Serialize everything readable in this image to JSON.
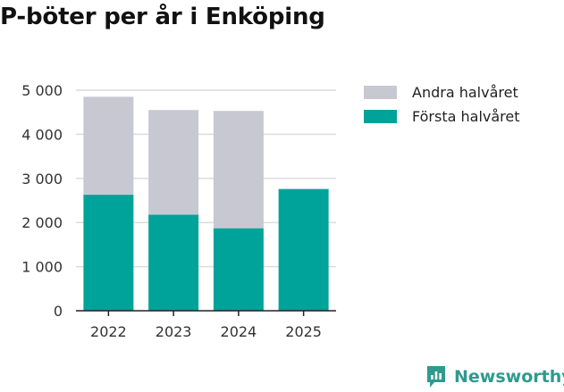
{
  "title": "P-böter per år i Enköping",
  "brand": {
    "name": "Newsworthy",
    "color": "#2f9a8e",
    "icon": "newsworthy-logo-icon"
  },
  "colors": {
    "first_half": "#00a39a",
    "second_half": "#c8c8d2",
    "grid": "#dcdcdc",
    "axis": "#222222"
  },
  "chart_data": {
    "type": "bar",
    "stacked": true,
    "categories": [
      "2022",
      "2023",
      "2024",
      "2025"
    ],
    "series": [
      {
        "name": "Första halvåret",
        "values": [
          2630,
          2180,
          1870,
          2760
        ]
      },
      {
        "name": "Andra halvåret",
        "values": [
          2220,
          2370,
          2660,
          null
        ]
      }
    ],
    "y_ticks": [
      0,
      1000,
      2000,
      3000,
      4000,
      5000
    ],
    "y_tick_labels": [
      "0",
      "1 000",
      "2 000",
      "3 000",
      "4 000",
      "5 000"
    ],
    "ylim": [
      0,
      5000
    ],
    "grid": true,
    "legend_position": "right",
    "xlabel": "",
    "ylabel": ""
  },
  "legend": [
    {
      "label": "Andra halvåret",
      "color": "#c8c8d2"
    },
    {
      "label": "Första halvåret",
      "color": "#00a39a"
    }
  ]
}
